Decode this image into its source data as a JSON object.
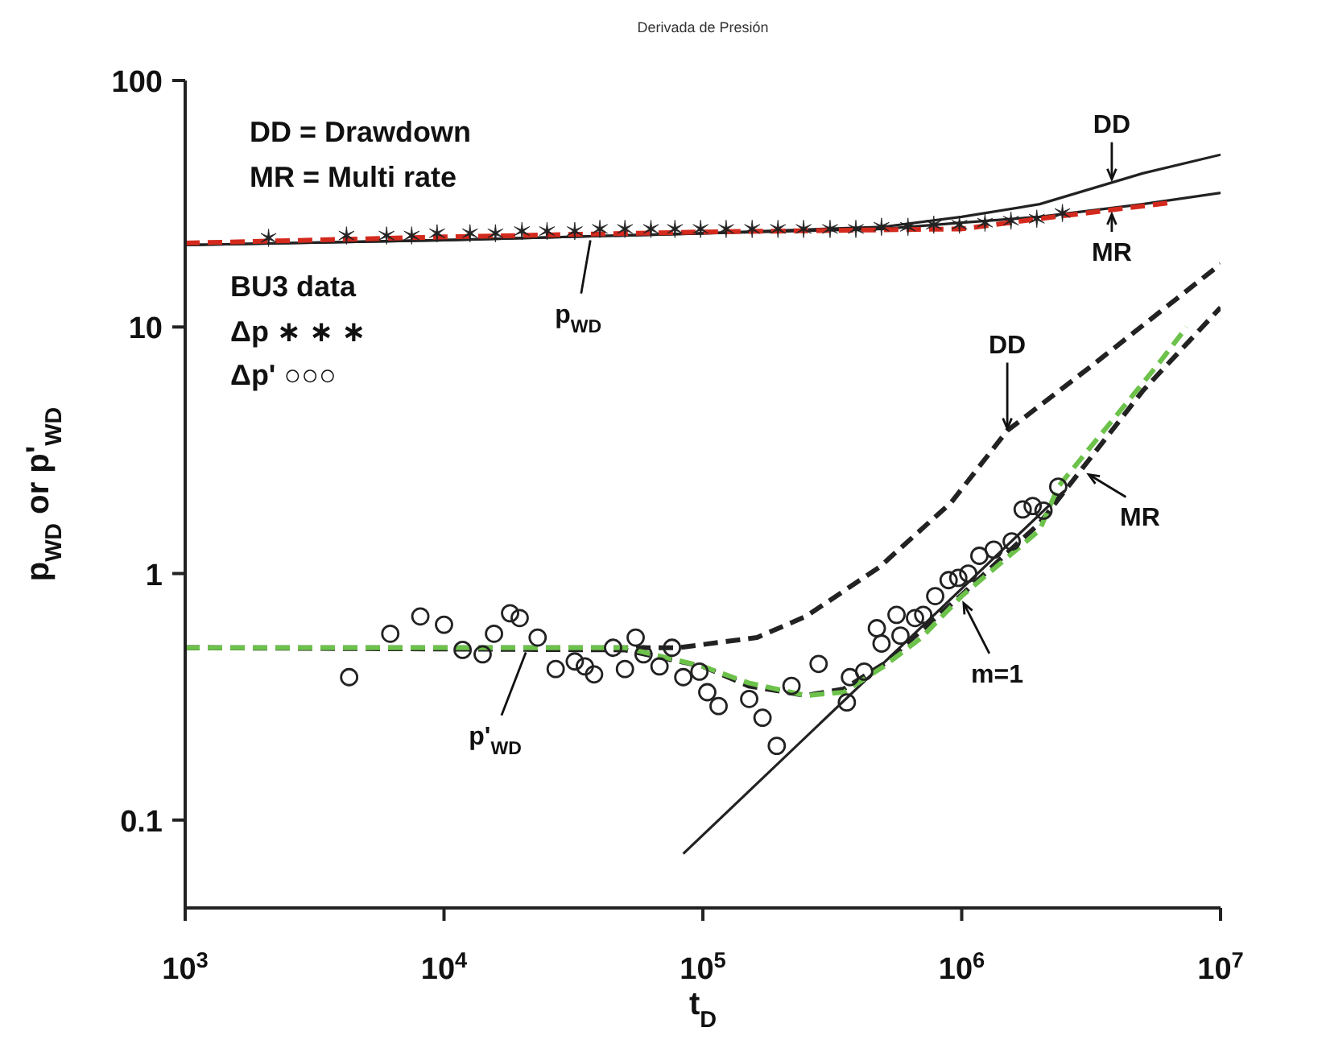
{
  "chart_data": {
    "type": "line",
    "title": "Derivada de Presión",
    "xlabel": "t$_{D}$",
    "ylabel": "p$_{WD}$ or p'$_{WD}$",
    "log": "xy",
    "grid": false,
    "legend": false,
    "xlim": [
      1000,
      10000000
    ],
    "xticks": [
      {
        "value": 1000,
        "label": "10$^{3}$"
      },
      {
        "value": 10000,
        "label": "10$^{4}$"
      },
      {
        "value": 100000,
        "label": "10$^{5}$"
      },
      {
        "value": 1000000,
        "label": "10$^{6}$"
      },
      {
        "value": 10000000,
        "label": "10$^{7}$"
      }
    ],
    "ylim": [
      0.044,
      100
    ],
    "yticks": [
      0.1,
      1,
      10,
      100
    ],
    "series": [
      {
        "color": "#222222",
        "line_style": "dashed",
        "marker": "none",
        "x": [
          1000,
          50000,
          100000,
          150000,
          250000,
          350000,
          500000,
          1000000,
          2000000,
          5000000,
          10000000
        ],
        "values": [
          0.5,
          0.49,
          0.42,
          0.35,
          0.32,
          0.34,
          0.43,
          0.82,
          1.6,
          5.5,
          12
        ]
      },
      {
        "color": "#222222",
        "line_style": "dashed",
        "marker": "none",
        "x": [
          1000,
          40000,
          80000,
          162000,
          250000,
          480000,
          910000,
          1500000,
          3200000,
          10000000
        ],
        "values": [
          0.5,
          0.5,
          0.5,
          0.55,
          0.67,
          1.06,
          1.94,
          3.8,
          7,
          18
        ]
      },
      {
        "color": "#222222",
        "line_style": "solid",
        "marker": "none",
        "x": [
          1000,
          10000,
          100000,
          500000,
          1000000,
          2000000,
          5000000,
          10000000
        ],
        "values": [
          21.5,
          22.5,
          24,
          25.5,
          28,
          31.5,
          42,
          50
        ]
      },
      {
        "color": "#222222",
        "line_style": "solid",
        "marker": "none",
        "x": [
          1000,
          10000,
          100000,
          500000,
          1000000,
          2000000,
          5000000,
          10000000
        ],
        "values": [
          21.5,
          22.5,
          24,
          25,
          26.5,
          28,
          31.5,
          35
        ]
      },
      {
        "color": "#222222",
        "line_style": "solid",
        "marker": "none",
        "x": [
          84000,
          2500000
        ],
        "values": [
          0.073,
          2.17
        ]
      },
      {
        "color": "#d42a1e",
        "line_style": "dashed",
        "marker": "none",
        "x": [
          1000,
          10000,
          100000,
          1000000,
          2000000,
          6500000
        ],
        "values": [
          21.9,
          23.2,
          24.3,
          25,
          27.5,
          32
        ]
      },
      {
        "color": "#6cc24a",
        "line_style": "dashed",
        "marker": "none",
        "x": [
          1000,
          10000,
          50000,
          100000,
          150000,
          250000,
          350000,
          500000,
          700000,
          1000000,
          2000000,
          2360000,
          5700000,
          7400000
        ],
        "values": [
          0.5,
          0.5,
          0.5,
          0.42,
          0.36,
          0.32,
          0.33,
          0.42,
          0.55,
          0.81,
          1.5,
          2.25,
          7,
          10
        ]
      },
      {
        "type": "scatter",
        "color": "#222222",
        "marker": "cross",
        "x": [
          2100,
          4200,
          6000,
          7500,
          9400,
          12600,
          15800,
          20000,
          25000,
          32000,
          40000,
          50000,
          63000,
          78000,
          98000,
          123000,
          155000,
          195000,
          245000,
          310000,
          390000,
          490000,
          620000,
          780000,
          980000,
          1230000,
          1550000,
          1950000,
          2450000
        ],
        "values": [
          23,
          23.5,
          23.5,
          23.5,
          24,
          24,
          24,
          24.5,
          24.5,
          24.5,
          25,
          25,
          25,
          25,
          25,
          25,
          25,
          25,
          25,
          25,
          25,
          25.5,
          25.5,
          26,
          26,
          26.5,
          27,
          27.5,
          29
        ]
      },
      {
        "type": "scatter",
        "color": "#222222",
        "marker": "circle",
        "x": [
          4300,
          6200,
          8100,
          10000,
          11800,
          14100,
          15600,
          18000,
          19600,
          23000,
          27000,
          32000,
          35000,
          38000,
          45000,
          50000,
          55000,
          59000,
          68000,
          76000,
          84000,
          97000,
          104000,
          115000,
          151000,
          170000,
          193000,
          220000,
          280000,
          360000,
          370000,
          420000,
          470000,
          490000,
          560000,
          580000,
          660000,
          710000,
          790000,
          890000,
          970000,
          1060000,
          1170000,
          1330000,
          1560000,
          1720000,
          1880000,
          2070000,
          2360000
        ],
        "values": [
          0.38,
          0.57,
          0.67,
          0.62,
          0.49,
          0.47,
          0.57,
          0.69,
          0.66,
          0.55,
          0.41,
          0.44,
          0.42,
          0.39,
          0.5,
          0.41,
          0.55,
          0.47,
          0.42,
          0.5,
          0.38,
          0.4,
          0.33,
          0.29,
          0.31,
          0.26,
          0.2,
          0.35,
          0.43,
          0.3,
          0.38,
          0.4,
          0.6,
          0.52,
          0.68,
          0.56,
          0.66,
          0.68,
          0.81,
          0.94,
          0.96,
          1,
          1.18,
          1.25,
          1.35,
          1.82,
          1.88,
          1.8,
          2.25
        ]
      }
    ],
    "annotations": [
      {
        "text": "DD",
        "x": 3800000,
        "y": 38
      },
      {
        "text": "MR",
        "x": 3800000,
        "y": 30
      },
      {
        "text": "p$_{WD}$",
        "x": 37000,
        "y": 23.5
      },
      {
        "text": "DD",
        "x": 1500000,
        "y": 3.7
      },
      {
        "text": "MR",
        "x": 3000000,
        "y": 2.6
      },
      {
        "text": "m=1",
        "x": 1000000,
        "y": 0.79
      },
      {
        "text": "p'$_{WD}$",
        "x": 21000,
        "y": 0.5
      },
      "DD = Drawdown",
      "MR = Multi rate",
      "BU3 data",
      "Δp ∗ ∗ ∗",
      "Δp' ○○○"
    ]
  }
}
